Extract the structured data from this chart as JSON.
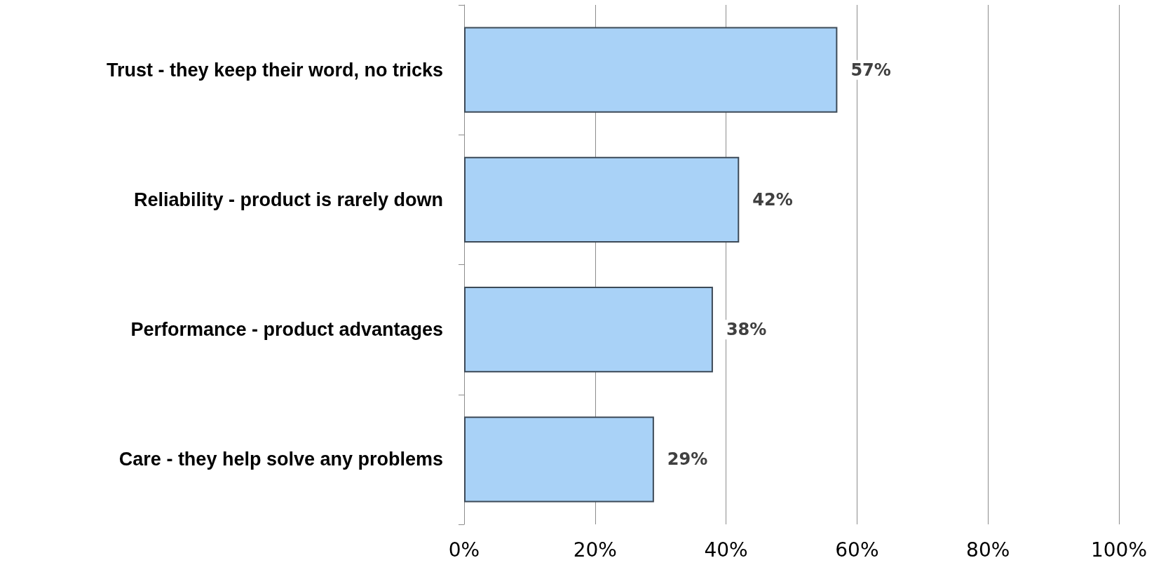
{
  "chart_data": {
    "type": "bar",
    "orientation": "horizontal",
    "categories": [
      "Trust - they keep their word, no tricks",
      "Reliability - product is rarely down",
      "Performance - product advantages",
      "Care - they help solve any problems"
    ],
    "values": [
      57,
      42,
      38,
      29
    ],
    "color": "#a9d2f7",
    "value_labels": [
      "57%",
      "42%",
      "38%",
      "29%"
    ],
    "xlim": [
      0,
      100
    ],
    "xticks": [
      {
        "value": 0,
        "label": "0%"
      },
      {
        "value": 20,
        "label": "20%"
      },
      {
        "value": 40,
        "label": "40%"
      },
      {
        "value": 60,
        "label": "60%"
      },
      {
        "value": 80,
        "label": "80%"
      },
      {
        "value": 100,
        "label": "100%"
      }
    ],
    "grid": "x"
  }
}
